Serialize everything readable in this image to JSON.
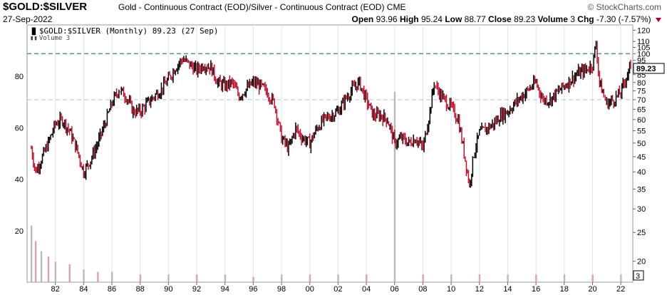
{
  "header": {
    "symbol": "$GOLD:$SILVER",
    "description": "Gold - Continuous Contract (EOD)/Silver - Continuous Contract (EOD) CME",
    "brand": "© StockCharts.com",
    "date": "27-Sep-2022",
    "open_label": "Open",
    "open": "93.96",
    "high_label": "High",
    "high": "95.24",
    "low_label": "Low",
    "low": "88.77",
    "close_label": "Close",
    "close": "89.23",
    "volume_label": "Volume",
    "volume": "3",
    "chg_label": "Chg",
    "chg": "-7.30 (-7.57%)",
    "chg_color": "#b0001c"
  },
  "legend": {
    "price": "$GOLD:$SILVER (Monthly) 89.23 (27 Sep)",
    "volume": "Volume 3"
  },
  "colors": {
    "up": "#000000",
    "down": "#c8102e",
    "volume_up": "#b9b9b9",
    "volume_down": "#e4a0a8",
    "ref_line": "#5b8fa8"
  },
  "chart_data": {
    "type": "line",
    "period": "monthly",
    "price_scale": "log",
    "ylim": [
      17,
      125
    ],
    "right_ticks": [
      120,
      110,
      105,
      100,
      95,
      90,
      85,
      80,
      75,
      70,
      65,
      60,
      55,
      50,
      45,
      40,
      35,
      30,
      25,
      20
    ],
    "current_value_label": "89.23",
    "reference_levels": [
      100,
      70
    ],
    "x_tick_labels": [
      "82",
      "84",
      "86",
      "88",
      "90",
      "92",
      "94",
      "96",
      "98",
      "00",
      "02",
      "04",
      "06",
      "08",
      "10",
      "12",
      "14",
      "16",
      "18",
      "20",
      "22"
    ],
    "x_ticks_year": [
      1982,
      1984,
      1986,
      1988,
      1990,
      1992,
      1994,
      1996,
      1998,
      2000,
      2002,
      2004,
      2006,
      2008,
      2010,
      2012,
      2014,
      2016,
      2018,
      2020,
      2022
    ],
    "series": [
      {
        "name": "$GOLD:$SILVER",
        "points": [
          [
            1980.3,
            48
          ],
          [
            1980.6,
            40
          ],
          [
            1981.0,
            44
          ],
          [
            1981.5,
            50
          ],
          [
            1982.0,
            58
          ],
          [
            1982.5,
            60
          ],
          [
            1983.0,
            55
          ],
          [
            1983.5,
            48
          ],
          [
            1984.0,
            40
          ],
          [
            1984.5,
            44
          ],
          [
            1985.0,
            50
          ],
          [
            1985.5,
            58
          ],
          [
            1986.0,
            68
          ],
          [
            1986.5,
            76
          ],
          [
            1987.0,
            72
          ],
          [
            1987.5,
            64
          ],
          [
            1988.0,
            64
          ],
          [
            1988.5,
            68
          ],
          [
            1989.0,
            72
          ],
          [
            1989.5,
            76
          ],
          [
            1990.0,
            82
          ],
          [
            1990.5,
            90
          ],
          [
            1991.0,
            96
          ],
          [
            1991.5,
            92
          ],
          [
            1992.0,
            88
          ],
          [
            1992.5,
            92
          ],
          [
            1993.0,
            90
          ],
          [
            1993.5,
            80
          ],
          [
            1994.0,
            78
          ],
          [
            1994.5,
            80
          ],
          [
            1995.0,
            72
          ],
          [
            1995.5,
            76
          ],
          [
            1996.0,
            80
          ],
          [
            1996.5,
            78
          ],
          [
            1997.0,
            74
          ],
          [
            1997.5,
            68
          ],
          [
            1998.0,
            52
          ],
          [
            1998.5,
            48
          ],
          [
            1999.0,
            56
          ],
          [
            1999.5,
            52
          ],
          [
            2000.0,
            50
          ],
          [
            2000.5,
            56
          ],
          [
            2001.0,
            60
          ],
          [
            2001.5,
            62
          ],
          [
            2002.0,
            64
          ],
          [
            2002.5,
            70
          ],
          [
            2003.0,
            76
          ],
          [
            2003.5,
            80
          ],
          [
            2004.0,
            70
          ],
          [
            2004.5,
            62
          ],
          [
            2005.0,
            62
          ],
          [
            2005.5,
            60
          ],
          [
            2006.0,
            50
          ],
          [
            2006.5,
            52
          ],
          [
            2007.0,
            50
          ],
          [
            2007.5,
            52
          ],
          [
            2008.0,
            48
          ],
          [
            2008.5,
            64
          ],
          [
            2008.8,
            80
          ],
          [
            2009.0,
            76
          ],
          [
            2009.5,
            70
          ],
          [
            2010.0,
            66
          ],
          [
            2010.5,
            60
          ],
          [
            2011.0,
            44
          ],
          [
            2011.3,
            36
          ],
          [
            2011.6,
            46
          ],
          [
            2012.0,
            54
          ],
          [
            2012.5,
            56
          ],
          [
            2013.0,
            58
          ],
          [
            2013.5,
            62
          ],
          [
            2014.0,
            64
          ],
          [
            2014.5,
            68
          ],
          [
            2015.0,
            72
          ],
          [
            2015.5,
            76
          ],
          [
            2016.0,
            80
          ],
          [
            2016.5,
            70
          ],
          [
            2017.0,
            70
          ],
          [
            2017.5,
            74
          ],
          [
            2018.0,
            78
          ],
          [
            2018.5,
            82
          ],
          [
            2019.0,
            86
          ],
          [
            2019.5,
            88
          ],
          [
            2020.0,
            92
          ],
          [
            2020.25,
            108
          ],
          [
            2020.5,
            80
          ],
          [
            2020.8,
            72
          ],
          [
            2021.0,
            68
          ],
          [
            2021.5,
            70
          ],
          [
            2022.0,
            74
          ],
          [
            2022.4,
            84
          ],
          [
            2022.7,
            89.23
          ]
        ]
      },
      {
        "name": "Volume",
        "axis": "left",
        "ylim": [
          0,
          100
        ],
        "left_ticks": [
          20,
          40,
          60,
          80
        ],
        "bars": [
          [
            1980.3,
            22
          ],
          [
            1980.6,
            16
          ],
          [
            1981.0,
            12
          ],
          [
            1981.5,
            10
          ],
          [
            1982.0,
            8
          ],
          [
            1983.0,
            7
          ],
          [
            1984.0,
            5
          ],
          [
            1985.0,
            4
          ],
          [
            1986.0,
            4
          ],
          [
            1988.0,
            3
          ],
          [
            1990.0,
            3
          ],
          [
            1992.0,
            3
          ],
          [
            1994.0,
            3
          ],
          [
            1996.0,
            2
          ],
          [
            1998.0,
            3
          ],
          [
            2000.0,
            3
          ],
          [
            2002.0,
            3
          ],
          [
            2004.0,
            3
          ],
          [
            2006.0,
            74
          ],
          [
            2008.0,
            3
          ],
          [
            2010.0,
            3
          ],
          [
            2012.0,
            3
          ],
          [
            2014.0,
            3
          ],
          [
            2016.0,
            3
          ],
          [
            2018.0,
            3
          ],
          [
            2020.0,
            3
          ],
          [
            2022.0,
            3
          ]
        ]
      }
    ]
  }
}
